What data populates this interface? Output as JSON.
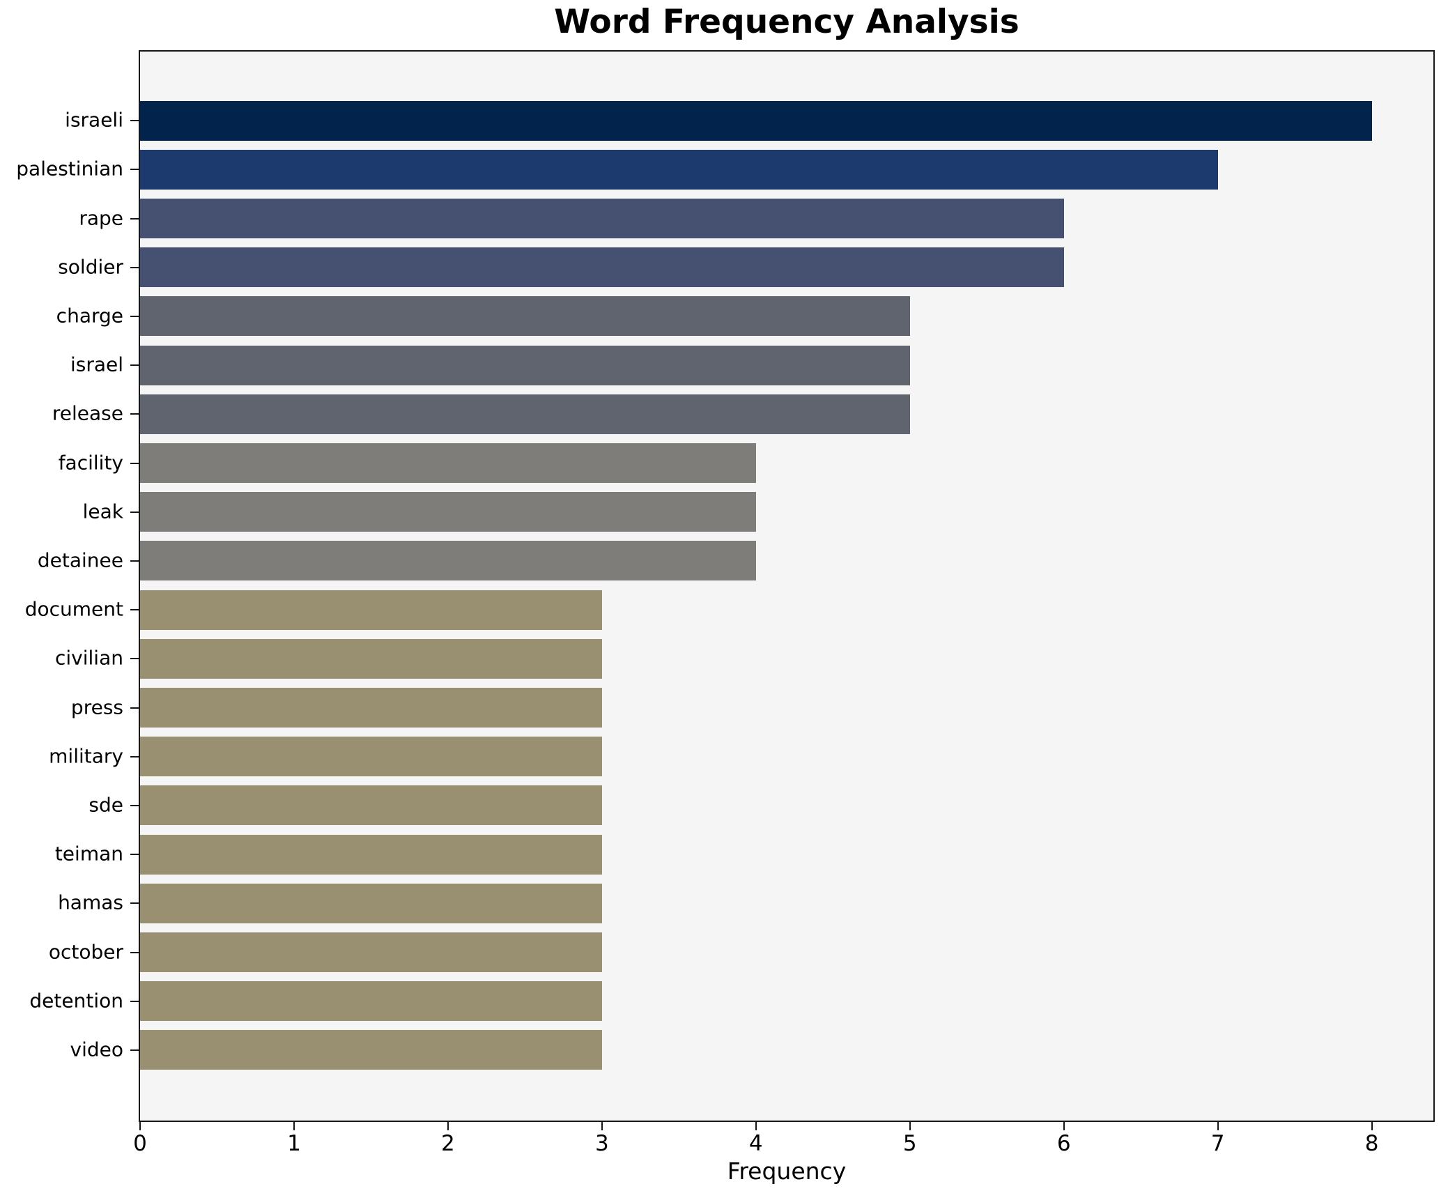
{
  "title": "Word Frequency Analysis",
  "colors": {
    "figure_bg": "#ffffff",
    "plot_bg": "#f5f5f6",
    "spine": "#15151a",
    "text": "#000000"
  },
  "chart_data": {
    "type": "bar",
    "orientation": "horizontal",
    "title": "Word Frequency Analysis",
    "xlabel": "Frequency",
    "ylabel": "",
    "xlim": [
      0,
      8.4
    ],
    "xticks": [
      0,
      1,
      2,
      3,
      4,
      5,
      6,
      7,
      8
    ],
    "grid": false,
    "legend": null,
    "categories": [
      "israeli",
      "palestinian",
      "rape",
      "soldier",
      "charge",
      "israel",
      "release",
      "facility",
      "leak",
      "detainee",
      "document",
      "civilian",
      "press",
      "military",
      "sde",
      "teiman",
      "hamas",
      "october",
      "detention",
      "video"
    ],
    "values": [
      8,
      7,
      6,
      6,
      5,
      5,
      5,
      4,
      4,
      4,
      3,
      3,
      3,
      3,
      3,
      3,
      3,
      3,
      3,
      3
    ],
    "bar_colors": [
      "#02234c",
      "#1d3a6e",
      "#465070",
      "#465070",
      "#60646f",
      "#60646f",
      "#60646f",
      "#7e7d7a",
      "#7e7d7a",
      "#7e7d7a",
      "#989071",
      "#989071",
      "#989071",
      "#989071",
      "#989071",
      "#989071",
      "#989071",
      "#989071",
      "#989071",
      "#989071"
    ]
  }
}
